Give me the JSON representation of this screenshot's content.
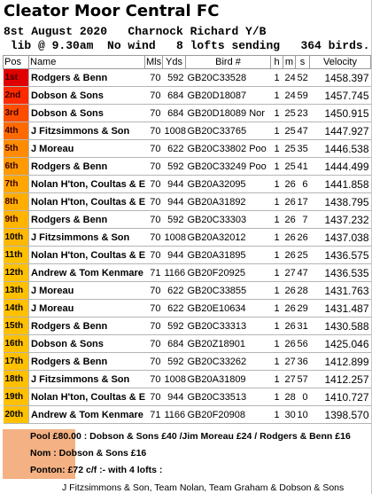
{
  "header": {
    "title": "Cleator Moor Central FC",
    "line1": "8st August 2020   Charnock Richard Y/B",
    "line2": " lib @ 9.30am  No wind   8 lofts sending   364 birds."
  },
  "columns": [
    "Pos",
    "Name",
    "Mls",
    "Yds",
    "Bird #",
    "h",
    "m",
    "s",
    "Velocity"
  ],
  "colors": {
    "pos_shades": [
      "#e00000",
      "#ff2a00",
      "#ff4d00",
      "#ff6a00",
      "#ff8c00",
      "#ff9a00",
      "#ffa600",
      "#ffae00",
      "#ffb400",
      "#ffb800",
      "#ffc000",
      "#ffc000",
      "#ffc000",
      "#ffc000",
      "#ffc000",
      "#ffc000",
      "#ffc000",
      "#ffc000",
      "#ffc000",
      "#ffc000"
    ],
    "pos_bright_rows": 9,
    "notes_bg": "#f4b183"
  },
  "rows": [
    {
      "pos": "1st",
      "name": "Rodgers & Benn",
      "mls": "70",
      "yds": "592",
      "bird": "GB20C33528",
      "h": "1",
      "m": "24",
      "s": "52",
      "vel": "1458.397"
    },
    {
      "pos": "2nd",
      "name": "Dobson & Sons",
      "mls": "70",
      "yds": "684",
      "bird": "GB20D18087",
      "h": "1",
      "m": "24",
      "s": "59",
      "vel": "1457.745"
    },
    {
      "pos": "3rd",
      "name": "Dobson & Sons",
      "mls": "70",
      "yds": "684",
      "bird": "GB20D18089 Nor",
      "h": "1",
      "m": "25",
      "s": "23",
      "vel": "1450.915"
    },
    {
      "pos": "4th",
      "name": "J Fitzsimmons & Son",
      "mls": "70",
      "yds": "1008",
      "bird": "GB20C33765",
      "h": "1",
      "m": "25",
      "s": "47",
      "vel": "1447.927"
    },
    {
      "pos": "5th",
      "name": "J Moreau",
      "mls": "70",
      "yds": "622",
      "bird": "GB20C33802 Poo",
      "h": "1",
      "m": "25",
      "s": "35",
      "vel": "1446.538"
    },
    {
      "pos": "6th",
      "name": "Rodgers & Benn",
      "mls": "70",
      "yds": "592",
      "bird": "GB20C33249 Poo",
      "h": "1",
      "m": "25",
      "s": "41",
      "vel": "1444.499"
    },
    {
      "pos": "7th",
      "name": "Nolan H'ton, Coultas & Ea",
      "mls": "70",
      "yds": "944",
      "bird": "GB20A32095",
      "h": "1",
      "m": "26",
      "s": "6",
      "vel": "1441.858"
    },
    {
      "pos": "8th",
      "name": "Nolan H'ton, Coultas & Ea",
      "mls": "70",
      "yds": "944",
      "bird": "GB20A31892",
      "h": "1",
      "m": "26",
      "s": "17",
      "vel": "1438.795"
    },
    {
      "pos": "9th",
      "name": "Rodgers & Benn",
      "mls": "70",
      "yds": "592",
      "bird": "GB20C33303",
      "h": "1",
      "m": "26",
      "s": "7",
      "vel": "1437.232"
    },
    {
      "pos": "10th",
      "name": "J Fitzsimmons & Son",
      "mls": "70",
      "yds": "1008",
      "bird": "GB20A32012",
      "h": "1",
      "m": "26",
      "s": "26",
      "vel": "1437.038"
    },
    {
      "pos": "11th",
      "name": "Nolan H'ton, Coultas & Ea",
      "mls": "70",
      "yds": "944",
      "bird": "GB20A31895",
      "h": "1",
      "m": "26",
      "s": "25",
      "vel": "1436.575"
    },
    {
      "pos": "12th",
      "name": "Andrew & Tom Kenmare",
      "mls": "71",
      "yds": "1166",
      "bird": "GB20F20925",
      "h": "1",
      "m": "27",
      "s": "47",
      "vel": "1436.535"
    },
    {
      "pos": "13th",
      "name": "J Moreau",
      "mls": "70",
      "yds": "622",
      "bird": "GB20C33855",
      "h": "1",
      "m": "26",
      "s": "28",
      "vel": "1431.763"
    },
    {
      "pos": "14th",
      "name": "J Moreau",
      "mls": "70",
      "yds": "622",
      "bird": "GB20E10634",
      "h": "1",
      "m": "26",
      "s": "29",
      "vel": "1431.487"
    },
    {
      "pos": "15th",
      "name": "Rodgers & Benn",
      "mls": "70",
      "yds": "592",
      "bird": "GB20C33313",
      "h": "1",
      "m": "26",
      "s": "31",
      "vel": "1430.588"
    },
    {
      "pos": "16th",
      "name": "Dobson & Sons",
      "mls": "70",
      "yds": "684",
      "bird": "GB20Z18901",
      "h": "1",
      "m": "26",
      "s": "56",
      "vel": "1425.046"
    },
    {
      "pos": "17th",
      "name": "Rodgers & Benn",
      "mls": "70",
      "yds": "592",
      "bird": "GB20C33262",
      "h": "1",
      "m": "27",
      "s": "36",
      "vel": "1412.899"
    },
    {
      "pos": "18th",
      "name": "J Fitzsimmons & Son",
      "mls": "70",
      "yds": "1008",
      "bird": "GB20A31809",
      "h": "1",
      "m": "27",
      "s": "57",
      "vel": "1412.257"
    },
    {
      "pos": "19th",
      "name": "Nolan H'ton, Coultas & Ea",
      "mls": "70",
      "yds": "944",
      "bird": "GB20C33513",
      "h": "1",
      "m": "28",
      "s": "0",
      "vel": "1410.727"
    },
    {
      "pos": "20th",
      "name": "Andrew & Tom Kenmare",
      "mls": "71",
      "yds": "1166",
      "bird": "GB20F20908",
      "h": "1",
      "m": "30",
      "s": "10",
      "vel": "1398.570"
    }
  ],
  "notes": {
    "pool": "Pool £80.00 : Dobson & Sons  £40 /Jim Moreau £24 / Rodgers & Benn £16",
    "nom": "Nom : Dobson & Sons £16",
    "ponton": "Ponton:  £72 c/f :- with 4 lofts :",
    "lofts": "J Fitzsimmons & Son, Team Nolan, Team Graham & Dobson & Sons"
  }
}
